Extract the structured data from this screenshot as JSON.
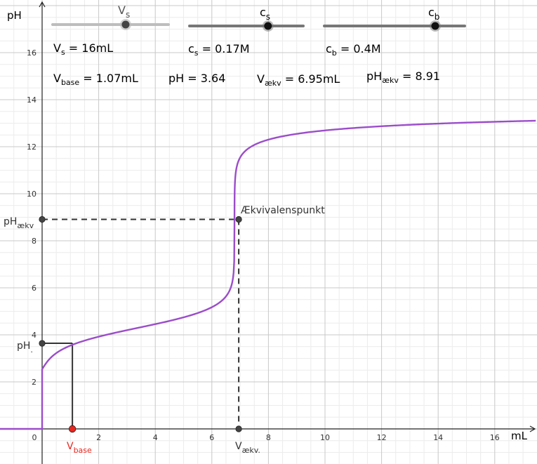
{
  "chart_data": {
    "type": "line",
    "xlabel": "mL",
    "ylabel": "pH",
    "xlim": [
      -1.5,
      17.5
    ],
    "ylim": [
      -1.45,
      18.3
    ],
    "grid": true,
    "x_ticks": [
      0,
      2,
      4,
      6,
      8,
      10,
      12,
      14,
      16
    ],
    "y_ticks": [
      2,
      4,
      6,
      8,
      10,
      12,
      14,
      16
    ],
    "x_tick_labels": [
      "0",
      "2",
      "4",
      "6",
      "8",
      "10",
      "12",
      "14",
      "16"
    ],
    "y_tick_labels": [
      "2",
      "4",
      "6",
      "8",
      "10",
      "12",
      "14",
      "16"
    ],
    "curve": {
      "color": "#9b4dca",
      "description_points": [
        {
          "x": 0,
          "y": 0
        },
        {
          "x": 0.05,
          "y": 1.6
        },
        {
          "x": 0.3,
          "y": 2.7
        },
        {
          "x": 1.07,
          "y": 3.64
        },
        {
          "x": 2,
          "y": 3.9
        },
        {
          "x": 3.47,
          "y": 4.3
        },
        {
          "x": 5,
          "y": 4.75
        },
        {
          "x": 6.5,
          "y": 5.6
        },
        {
          "x": 6.95,
          "y": 8.91
        },
        {
          "x": 7.4,
          "y": 12.2
        },
        {
          "x": 10,
          "y": 12.7
        },
        {
          "x": 14,
          "y": 13.0
        },
        {
          "x": 17.5,
          "y": 13.1
        }
      ]
    },
    "params": {
      "Vs": 16,
      "cs": 0.17,
      "cb": 0.4,
      "Vbase": 1.07,
      "pH": 3.64,
      "Vaekv": 6.95,
      "pHaekv": 8.91
    }
  },
  "sliders": [
    {
      "label_main": "V",
      "label_sub": "s",
      "value_fraction": 0.63,
      "active": false
    },
    {
      "label_main": "c",
      "label_sub": "s",
      "value_fraction": 0.69,
      "active": true
    },
    {
      "label_main": "c",
      "label_sub": "b",
      "value_fraction": 0.79,
      "active": true
    }
  ],
  "info": {
    "vs": {
      "main": "V",
      "sub": "s",
      "rest": " = 16mL"
    },
    "cs": {
      "main": "c",
      "sub": "s",
      "rest": " = 0.17M"
    },
    "cb": {
      "main": "c",
      "sub": "b",
      "rest": " = 0.4M"
    },
    "vbase": {
      "main": "V",
      "sub": "base",
      "rest": " = 1.07mL"
    },
    "ph": {
      "main": "pH = 3.64"
    },
    "vaekv": {
      "main": "V",
      "sub": "ækv",
      "rest": " = 6.95mL"
    },
    "phaekv": {
      "main": "pH",
      "sub": "ækv",
      "rest": " = 8.91"
    }
  },
  "labels": {
    "equivalence_point": "Ækvivalenspunkt",
    "pH_aekv_main": "pH",
    "pH_aekv_sub": "ækv",
    "pH_point_main": "pH",
    "pH_point_sub": ".",
    "v_aekv_main": "V",
    "v_aekv_sub": "ækv.",
    "v_base_main": "V",
    "v_base_sub": "base"
  },
  "colors": {
    "curve": "#9b4dca",
    "vbase_point": "#e8271f",
    "point": "#444444",
    "dashed": "#333333",
    "slider_track_inactive": "#bdbdbd",
    "slider_track_active": "#777777"
  }
}
